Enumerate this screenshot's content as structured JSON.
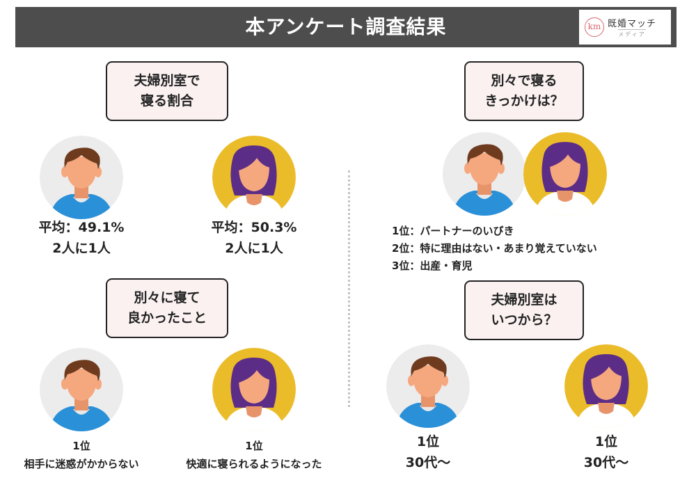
{
  "header": {
    "title": "本アンケート調査結果",
    "logo_mark": "km",
    "logo_name": "既婚マッチ",
    "logo_sub": "メディア"
  },
  "colors": {
    "banner": "#4d4d4d",
    "box_bg": "#fbf1f1",
    "man_bg": "#ececec",
    "woman_bg": "#ebbc2a",
    "shirt": "#2a90d8",
    "skin": "#f5a77e",
    "man_hair": "#6e3b1e",
    "woman_hair": "#5c2d86"
  },
  "q1": {
    "title": "夫婦別室で\n寝る割合",
    "male": {
      "line1": "平均：49.1%",
      "line2": "2人に1人"
    },
    "female": {
      "line1": "平均：50.3%",
      "line2": "2人に1人"
    }
  },
  "q2": {
    "title": "別々で寝る\nきっかけは？",
    "reasons": [
      "1位：パートナーのいびき",
      "2位：特に理由はない・あまり覚えていない",
      "3位：出産・育児"
    ]
  },
  "q3": {
    "title": "別々に寝て\n良かったこと",
    "male": {
      "rank": "1位",
      "answer": "相手に迷惑がかからない"
    },
    "female": {
      "rank": "1位",
      "answer": "快適に寝られるようになった"
    }
  },
  "q4": {
    "title": "夫婦別室は\nいつから？",
    "male": {
      "rank": "1位",
      "answer": "30代〜"
    },
    "female": {
      "rank": "1位",
      "answer": "30代〜"
    }
  }
}
